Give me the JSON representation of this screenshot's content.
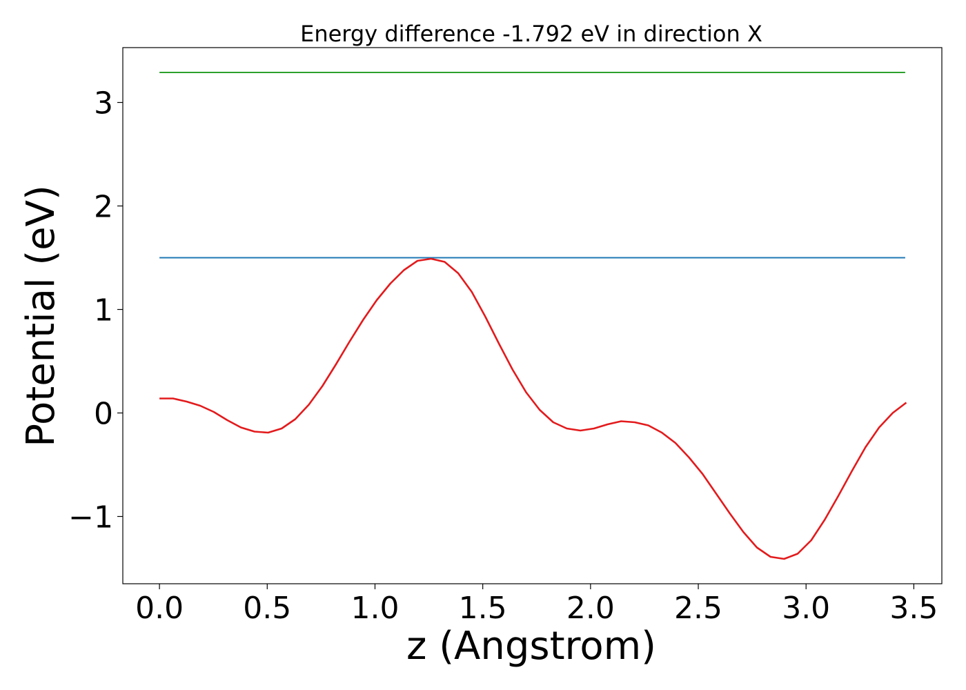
{
  "chart_data": {
    "type": "line",
    "title": "Energy difference -1.792 eV in direction X",
    "xlabel": "z (Angstrom)",
    "ylabel": "Potential (eV)",
    "xlim": [
      -0.17,
      3.63
    ],
    "ylim": [
      -1.65,
      3.53
    ],
    "xticks": [
      0.0,
      0.5,
      1.0,
      1.5,
      2.0,
      2.5,
      3.0,
      3.5
    ],
    "xtick_labels": [
      "0.0",
      "0.5",
      "1.0",
      "1.5",
      "2.0",
      "2.5",
      "3.0",
      "3.5"
    ],
    "yticks": [
      -1,
      0,
      1,
      2,
      3
    ],
    "ytick_labels": [
      "−1",
      "0",
      "1",
      "2",
      "3"
    ],
    "grid": false,
    "series": [
      {
        "color": "#2ca02c",
        "x": [
          0.0,
          3.46
        ],
        "y": [
          3.29,
          3.29
        ]
      },
      {
        "color": "#1f77b4",
        "x": [
          0.0,
          3.46
        ],
        "y": [
          1.5,
          1.5
        ]
      },
      {
        "color": "#e31a1c",
        "x": [
          0.0,
          0.063,
          0.126,
          0.189,
          0.252,
          0.315,
          0.378,
          0.441,
          0.504,
          0.567,
          0.63,
          0.693,
          0.756,
          0.819,
          0.882,
          0.945,
          1.008,
          1.071,
          1.134,
          1.197,
          1.26,
          1.323,
          1.386,
          1.449,
          1.512,
          1.575,
          1.638,
          1.701,
          1.764,
          1.827,
          1.89,
          1.953,
          2.016,
          2.079,
          2.142,
          2.205,
          2.268,
          2.331,
          2.394,
          2.457,
          2.52,
          2.583,
          2.646,
          2.709,
          2.772,
          2.835,
          2.898,
          2.961,
          3.024,
          3.087,
          3.15,
          3.213,
          3.276,
          3.339,
          3.402,
          3.465
        ],
        "y": [
          0.14,
          0.14,
          0.11,
          0.07,
          0.01,
          -0.07,
          -0.14,
          -0.18,
          -0.19,
          -0.15,
          -0.06,
          0.08,
          0.26,
          0.47,
          0.69,
          0.9,
          1.09,
          1.25,
          1.38,
          1.47,
          1.49,
          1.46,
          1.35,
          1.17,
          0.93,
          0.67,
          0.42,
          0.2,
          0.03,
          -0.09,
          -0.15,
          -0.17,
          -0.15,
          -0.11,
          -0.08,
          -0.09,
          -0.12,
          -0.19,
          -0.29,
          -0.43,
          -0.59,
          -0.78,
          -0.97,
          -1.15,
          -1.3,
          -1.39,
          -1.41,
          -1.36,
          -1.23,
          -1.03,
          -0.8,
          -0.56,
          -0.33,
          -0.14,
          0.0,
          0.1
        ]
      }
    ]
  }
}
